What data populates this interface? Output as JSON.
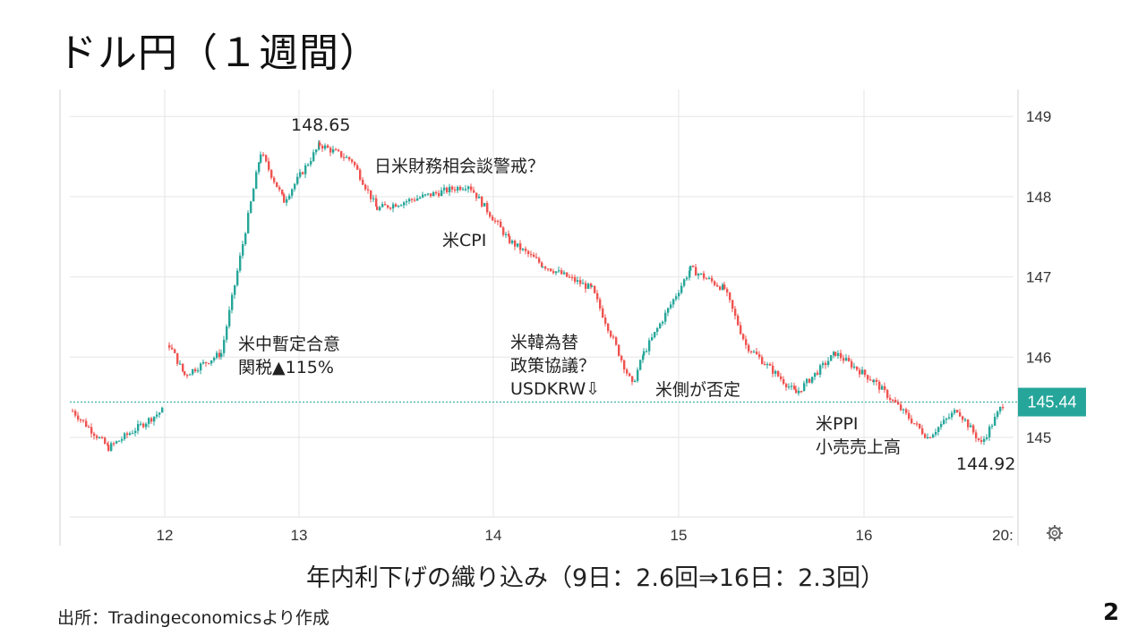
{
  "title": "ドル円（１週間）",
  "caption": "年内利下げの織り込み（9日：2.6回⇒16日：2.3回）",
  "source": "出所：Tradingeconomicsより作成",
  "page_number": "2",
  "colors": {
    "up": "#26a69a",
    "down": "#ef5350",
    "current_price_tag": "#26a69a",
    "grid": "#e6e6e6",
    "arrow": "#ef5350"
  },
  "chart_data": {
    "type": "candlestick",
    "title": "",
    "xlabel": "",
    "ylabel": "",
    "ylim": [
      144.0,
      149.3
    ],
    "y_ticks": [
      "149",
      "148",
      "147",
      "146",
      "145"
    ],
    "x_ticks": [
      "12",
      "13",
      "14",
      "15",
      "16",
      "20:"
    ],
    "current_price": "145.44",
    "grid": true,
    "settings_icon": "gear-icon",
    "series_approx": [
      {
        "x": "11 start",
        "y": 145.33
      },
      {
        "x": "11 low",
        "y": 144.87
      },
      {
        "x": "11 end",
        "y": 145.35
      },
      {
        "x": "12 gap open",
        "y": 146.15
      },
      {
        "x": "12 early",
        "y": 145.78
      },
      {
        "x": "12 mid",
        "y": 146.05
      },
      {
        "x": "12 surge high",
        "y": 148.55
      },
      {
        "x": "12 late",
        "y": 147.95
      },
      {
        "x": "13 high",
        "y": 148.65
      },
      {
        "x": "13 mid",
        "y": 148.45
      },
      {
        "x": "13 late",
        "y": 147.85
      },
      {
        "x": "14 open",
        "y": 148.15
      },
      {
        "x": "14 mid",
        "y": 147.45
      },
      {
        "x": "14 late",
        "y": 147.15
      },
      {
        "x": "14 dip",
        "y": 146.85
      },
      {
        "x": "14 low",
        "y": 145.65
      },
      {
        "x": "15 open",
        "y": 146.05
      },
      {
        "x": "15 high",
        "y": 147.1
      },
      {
        "x": "15 late",
        "y": 146.85
      },
      {
        "x": "15 drop",
        "y": 146.15
      },
      {
        "x": "15 end",
        "y": 145.55
      },
      {
        "x": "16 high",
        "y": 146.05
      },
      {
        "x": "16 mid",
        "y": 145.7
      },
      {
        "x": "16 low",
        "y": 145.0
      },
      {
        "x": "16 range",
        "y": 145.35
      },
      {
        "x": "16 low2",
        "y": 144.92
      },
      {
        "x": "last",
        "y": 145.44
      }
    ],
    "annotations": [
      {
        "id": "peak",
        "lines": [
          "148.65"
        ]
      },
      {
        "id": "ustalks",
        "lines": [
          "日米財務相会談警戒？"
        ]
      },
      {
        "id": "uscpi",
        "lines": [
          "米CPI"
        ]
      },
      {
        "id": "uschina",
        "lines": [
          "米中暫定合意",
          "関税▲115%"
        ]
      },
      {
        "id": "uskorea",
        "lines": [
          "米韓為替",
          "政策協議？",
          "USDKRW⇩"
        ]
      },
      {
        "id": "usdenial",
        "lines": [
          "米側が否定"
        ]
      },
      {
        "id": "usppi",
        "lines": [
          "米PPI",
          "小売売上高"
        ]
      },
      {
        "id": "low",
        "lines": [
          "144.92"
        ]
      }
    ]
  }
}
